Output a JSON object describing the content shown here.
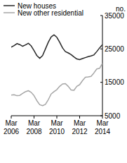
{
  "chart_data": {
    "type": "line",
    "ylabel": "no.",
    "categories": [
      "Mar 2006",
      null,
      null,
      null,
      null,
      null,
      null,
      null,
      "Mar 2008",
      null,
      null,
      null,
      null,
      null,
      null,
      null,
      "Mar 2010",
      null,
      null,
      null,
      null,
      null,
      null,
      null,
      "Mar 2012",
      null,
      null,
      null,
      null,
      null,
      null,
      null,
      "Mar 2014"
    ],
    "series": [
      {
        "name": "New houses",
        "color": "#262626",
        "values": [
          25500,
          26000,
          26600,
          26300,
          25800,
          26200,
          26700,
          25900,
          24500,
          23000,
          22200,
          23000,
          25000,
          27000,
          28600,
          29200,
          28500,
          27000,
          25300,
          24200,
          23800,
          23300,
          22600,
          22000,
          21800,
          22100,
          22400,
          22700,
          22900,
          23200,
          24200,
          25300,
          26300
        ]
      },
      {
        "name": "New other residential",
        "color": "#a6a6a6",
        "values": [
          11200,
          11300,
          11000,
          11100,
          11700,
          12200,
          12500,
          12000,
          11000,
          9500,
          8300,
          8000,
          8400,
          9800,
          11500,
          12200,
          12800,
          13800,
          14500,
          14600,
          13800,
          12700,
          12600,
          13800,
          14300,
          15500,
          16500,
          16600,
          16800,
          17800,
          19000,
          19200,
          20700
        ]
      }
    ],
    "ylim": [
      5000,
      35000
    ],
    "yticks": [
      5000,
      15000,
      25000,
      35000
    ],
    "grid": false,
    "legend": "top-left"
  }
}
